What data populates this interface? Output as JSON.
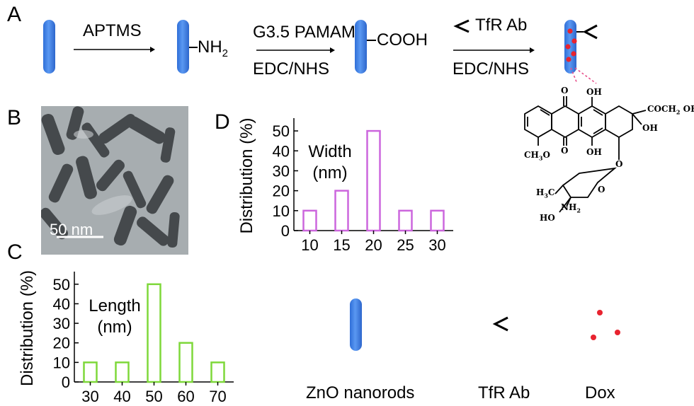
{
  "scheme": {
    "panel_label": "A",
    "step1_reagent": "APTMS",
    "amine_group": "NH",
    "amine_subscript": "2",
    "step2_reagent": "G3.5 PAMAM",
    "step2_coupling": "EDC/NHS",
    "carboxyl_group": "COOH",
    "step3_reagent": "TfR Ab",
    "step3_coupling": "EDC/NHS"
  },
  "molecule": {
    "oh1": "OH",
    "oh2": "OH",
    "oh3": "OH",
    "side_chain": "COCH",
    "side_chain_sub": "2",
    "side_chain_tail": "OH",
    "o_top": "O",
    "o_bottom": "O",
    "methoxy": "CH",
    "methoxy_sub": "3",
    "methoxy_o": "O",
    "ring_o": "O",
    "sugar_o": "O",
    "ho": "HO",
    "amine": "NH",
    "amine_sub": "2",
    "methyl": "H",
    "methyl_sub": "3",
    "methyl_c": "C"
  },
  "tem": {
    "panel_label": "B",
    "scale_bar_label": "50 nm"
  },
  "legend": {
    "zno": "ZnO nanorods",
    "tfr": "TfR Ab",
    "dox": "Dox"
  },
  "colors": {
    "rod": "#3e7fe6",
    "dox": "#e8232f",
    "length_bars": "#7ed83a",
    "width_bars": "#cc66dd"
  },
  "chart_data": [
    {
      "panel_label": "C",
      "type": "bar",
      "categories": [
        "30",
        "40",
        "50",
        "60",
        "70"
      ],
      "values": [
        10,
        10,
        50,
        20,
        10
      ],
      "ylabel": "Distribution (%)",
      "annotation_line1": "Length",
      "annotation_line2": "(nm)",
      "yticks": [
        "0",
        "10",
        "20",
        "30",
        "40",
        "50"
      ],
      "ylim": [
        0,
        55
      ],
      "grid": false
    },
    {
      "panel_label": "D",
      "type": "bar",
      "categories": [
        "10",
        "15",
        "20",
        "25",
        "30"
      ],
      "values": [
        10,
        20,
        50,
        10,
        10
      ],
      "ylabel": "Distribution (%)",
      "annotation_line1": "Width",
      "annotation_line2": "(nm)",
      "yticks": [
        "0",
        "10",
        "20",
        "30",
        "40",
        "50"
      ],
      "ylim": [
        0,
        55
      ],
      "grid": false
    }
  ]
}
